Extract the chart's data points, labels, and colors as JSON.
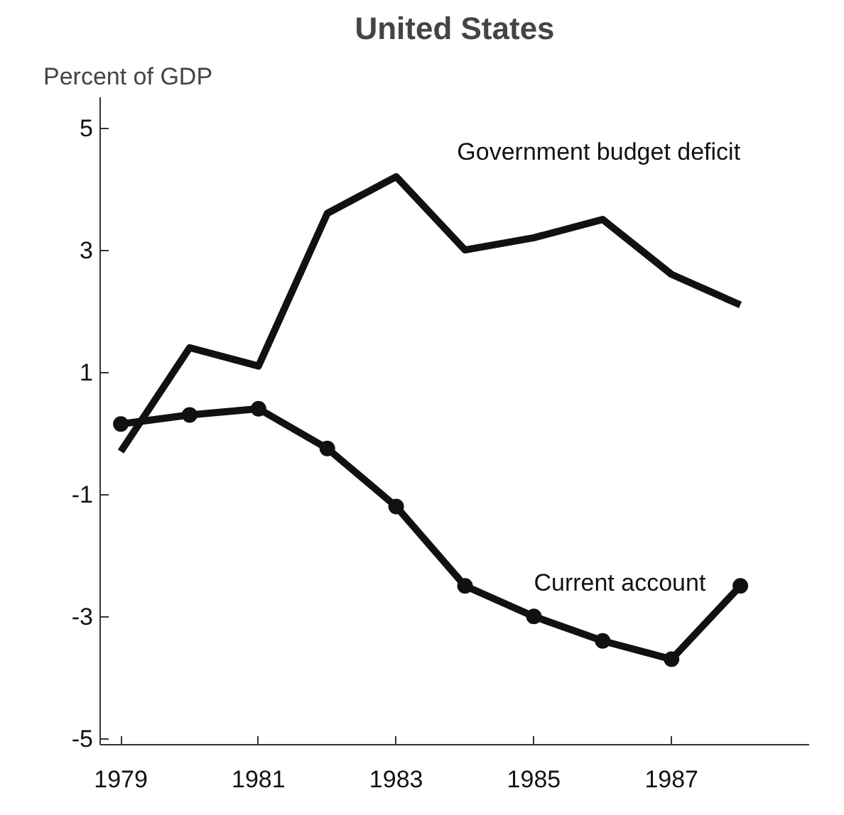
{
  "chart_data": {
    "type": "line",
    "title": "United States",
    "ylabel": "Percent of GDP",
    "x": [
      1979,
      1980,
      1981,
      1982,
      1983,
      1984,
      1985,
      1986,
      1987,
      1988
    ],
    "series": [
      {
        "name": "Government budget deficit",
        "color": "#111111",
        "marker": "none",
        "values": [
          -0.3,
          1.4,
          1.1,
          3.6,
          4.2,
          3.0,
          3.2,
          3.5,
          2.6,
          2.1
        ]
      },
      {
        "name": "Current account",
        "color": "#111111",
        "marker": "circle",
        "values": [
          0.15,
          0.3,
          0.4,
          -0.25,
          -1.2,
          -2.5,
          -3.0,
          -3.4,
          -3.7,
          -2.5
        ]
      }
    ],
    "xlim": [
      1978.7,
      1989
    ],
    "ylim": [
      -5.1,
      5.5
    ],
    "xticks": [
      1979,
      1981,
      1983,
      1985,
      1987
    ],
    "yticks": [
      5,
      3,
      1,
      {
        "value": -1,
        "label": "-1"
      },
      {
        "value": -3,
        "label": "-3"
      },
      {
        "value": -5,
        "label": "-5"
      }
    ],
    "grid": false,
    "line_style": "solid"
  }
}
